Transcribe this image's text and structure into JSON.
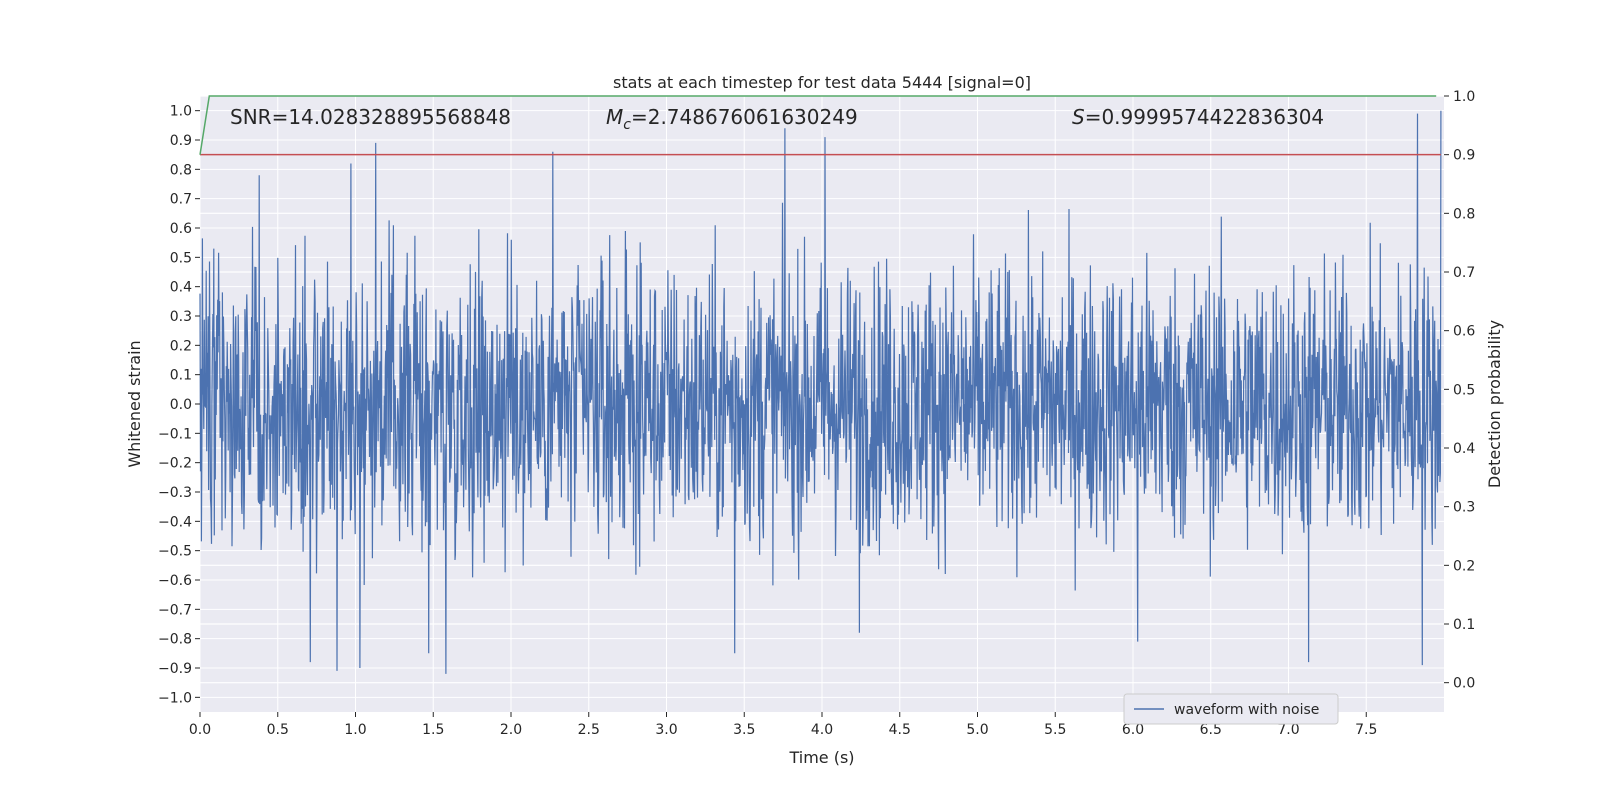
{
  "chart_data": {
    "type": "line",
    "title": "stats at each timestep for test data 5444 [signal=0]",
    "xlabel": "Time (s)",
    "ylabel_left": "Whitened strain",
    "ylabel_right": "Detection probability",
    "xlim": [
      0.0,
      8.0
    ],
    "ylim_left": [
      -1.05,
      1.05
    ],
    "ylim_right": [
      -0.05,
      1.0
    ],
    "x_ticks": [
      "0.0",
      "0.5",
      "1.0",
      "1.5",
      "2.0",
      "2.5",
      "3.0",
      "3.5",
      "4.0",
      "4.5",
      "5.0",
      "5.5",
      "6.0",
      "6.5",
      "7.0",
      "7.5"
    ],
    "x_tick_values": [
      0.0,
      0.5,
      1.0,
      1.5,
      2.0,
      2.5,
      3.0,
      3.5,
      4.0,
      4.5,
      5.0,
      5.5,
      6.0,
      6.5,
      7.0,
      7.5
    ],
    "y_ticks_left": [
      "1.0",
      "0.9",
      "0.8",
      "0.7",
      "0.6",
      "0.5",
      "0.4",
      "0.3",
      "0.2",
      "0.1",
      "0.0",
      "−0.1",
      "−0.2",
      "−0.3",
      "−0.4",
      "−0.5",
      "−0.6",
      "−0.7",
      "−0.8",
      "−0.9",
      "−1.0"
    ],
    "y_tick_values_left": [
      1.0,
      0.9,
      0.8,
      0.7,
      0.6,
      0.5,
      0.4,
      0.3,
      0.2,
      0.1,
      0.0,
      -0.1,
      -0.2,
      -0.3,
      -0.4,
      -0.5,
      -0.6,
      -0.7,
      -0.8,
      -0.9,
      -1.0
    ],
    "y_ticks_right": [
      "1.0",
      "0.9",
      "0.8",
      "0.7",
      "0.6",
      "0.5",
      "0.4",
      "0.3",
      "0.2",
      "0.1",
      "0.0"
    ],
    "y_tick_values_right": [
      1.0,
      0.9,
      0.8,
      0.7,
      0.6,
      0.5,
      0.4,
      0.3,
      0.2,
      0.1,
      0.0
    ],
    "grid": true,
    "legend_position": "bottom-right",
    "series": [
      {
        "name": "waveform with noise",
        "axis": "left",
        "color": "#4c72b0",
        "kind": "noise",
        "x_range": [
          0.0,
          7.98
        ],
        "typical_amplitude": 0.45,
        "peaks": [
          {
            "x": 1.13,
            "y": 0.89
          },
          {
            "x": 2.27,
            "y": 0.86
          },
          {
            "x": 3.76,
            "y": 0.94
          },
          {
            "x": 4.02,
            "y": 0.91
          },
          {
            "x": 7.83,
            "y": 0.99
          },
          {
            "x": 7.98,
            "y": 1.0
          },
          {
            "x": 0.38,
            "y": 0.78
          },
          {
            "x": 0.97,
            "y": 0.82
          },
          {
            "x": 1.58,
            "y": -0.92
          },
          {
            "x": 0.88,
            "y": -0.91
          },
          {
            "x": 1.03,
            "y": -0.9
          },
          {
            "x": 0.71,
            "y": -0.88
          },
          {
            "x": 1.47,
            "y": -0.85
          },
          {
            "x": 3.44,
            "y": -0.85
          },
          {
            "x": 7.13,
            "y": -0.88
          },
          {
            "x": 7.86,
            "y": -0.89
          },
          {
            "x": 6.03,
            "y": -0.81
          },
          {
            "x": 4.24,
            "y": -0.78
          }
        ]
      },
      {
        "name": "detection probability",
        "axis": "right",
        "color": "#55a868",
        "x": [
          0.0,
          0.06,
          7.95
        ],
        "y": [
          0.9,
          1.0,
          1.0
        ]
      },
      {
        "name": "threshold",
        "axis": "right",
        "color": "#c44e52",
        "x": [
          0.0,
          7.98
        ],
        "y": [
          0.9,
          0.9
        ]
      }
    ],
    "annotations": [
      {
        "label": "SNR",
        "value": "=14.028328895568848"
      },
      {
        "label": "M",
        "subscript": "c",
        "value": "=2.748676061630249"
      },
      {
        "label": "S",
        "value": "=0.9999574422836304"
      }
    ],
    "legend": [
      "waveform with noise"
    ]
  }
}
